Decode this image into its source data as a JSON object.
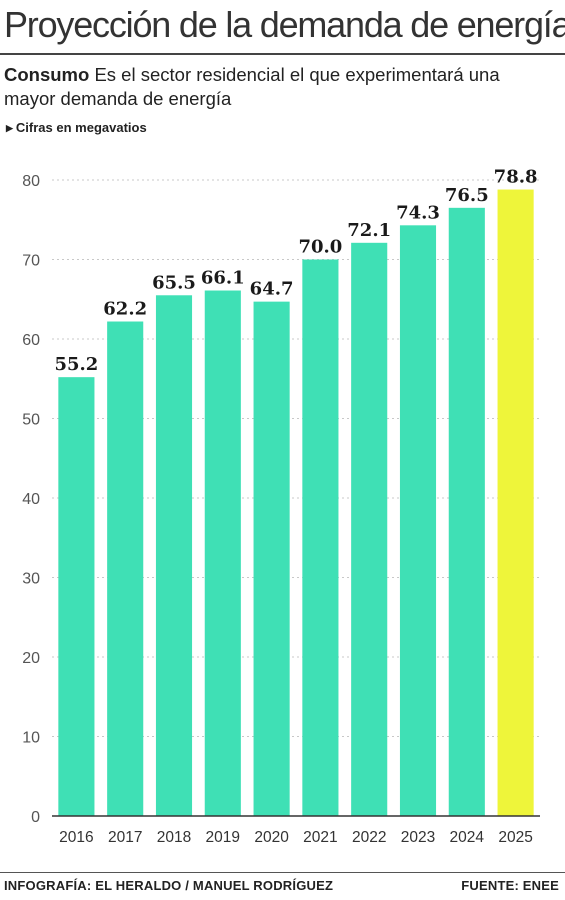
{
  "header": {
    "title": "Proyección de la demanda de energía",
    "subtitle_bold": "Consumo",
    "subtitle_text": " Es el sector residencial el que experimentará una mayor demanda de energía",
    "unit_note": "Cifras en megavatios"
  },
  "footer": {
    "credit": "INFOGRAFÍA: EL HERALDO / MANUEL RODRÍGUEZ",
    "source": "FUENTE: ENEE"
  },
  "colors": {
    "bar": "#3fe0b5",
    "highlight": "#eef53a",
    "grid": "#c8c8c8",
    "axis": "#333333"
  },
  "chart_data": {
    "type": "bar",
    "categories": [
      "2016",
      "2017",
      "2018",
      "2019",
      "2020",
      "2021",
      "2022",
      "2023",
      "2024",
      "2025"
    ],
    "values": [
      55.2,
      62.2,
      65.5,
      66.1,
      64.7,
      70.0,
      72.1,
      74.3,
      76.5,
      78.8
    ],
    "data_labels": [
      "55.2",
      "62.2",
      "65.5",
      "66.1",
      "64.7",
      "70.0",
      "72.1",
      "74.3",
      "76.5",
      "78.8"
    ],
    "highlight_category": "2025",
    "yticks": [
      0,
      10,
      20,
      30,
      40,
      50,
      60,
      70,
      80
    ],
    "ylim": [
      0,
      80
    ],
    "grid": true,
    "legend": "none"
  }
}
